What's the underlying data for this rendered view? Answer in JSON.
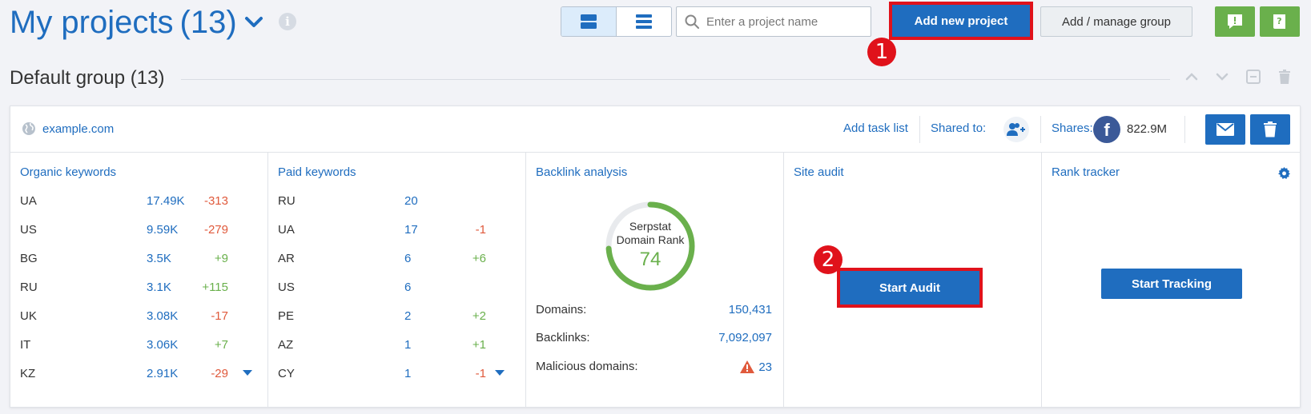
{
  "header": {
    "title": "My projects",
    "count": "(13)",
    "search_placeholder": "Enter a project name",
    "add_new_label": "Add new project",
    "manage_label": "Add / manage group",
    "markers": [
      "1",
      "2"
    ]
  },
  "group": {
    "title": "Default group (13)"
  },
  "project": {
    "domain": "example.com",
    "add_task_list": "Add task list",
    "shared_to": "Shared to:",
    "shares_label": "Shares:",
    "fb_letter": "f",
    "shares_value": "822.9M"
  },
  "organic": {
    "title": "Organic keywords",
    "rows": [
      {
        "cc": "UA",
        "v": "17.49K",
        "d": "-313"
      },
      {
        "cc": "US",
        "v": "9.59K",
        "d": "-279"
      },
      {
        "cc": "BG",
        "v": "3.5K",
        "d": "+9"
      },
      {
        "cc": "RU",
        "v": "3.1K",
        "d": "+115"
      },
      {
        "cc": "UK",
        "v": "3.08K",
        "d": "-17"
      },
      {
        "cc": "IT",
        "v": "3.06K",
        "d": "+7"
      },
      {
        "cc": "KZ",
        "v": "2.91K",
        "d": "-29"
      }
    ]
  },
  "paid": {
    "title": "Paid keywords",
    "rows": [
      {
        "cc": "RU",
        "v": "20",
        "d": ""
      },
      {
        "cc": "UA",
        "v": "17",
        "d": "-1"
      },
      {
        "cc": "AR",
        "v": "6",
        "d": "+6"
      },
      {
        "cc": "US",
        "v": "6",
        "d": ""
      },
      {
        "cc": "PE",
        "v": "2",
        "d": "+2"
      },
      {
        "cc": "AZ",
        "v": "1",
        "d": "+1"
      },
      {
        "cc": "CY",
        "v": "1",
        "d": "-1"
      }
    ]
  },
  "backlinks": {
    "title": "Backlink analysis",
    "rank_label_1": "Serpstat",
    "rank_label_2": "Domain Rank",
    "rank_value": "74",
    "rank_fraction": 0.74,
    "domains_label": "Domains:",
    "domains_value": "150,431",
    "backlinks_label": "Backlinks:",
    "backlinks_value": "7,092,097",
    "malicious_label": "Malicious domains:",
    "malicious_value": "23"
  },
  "audit": {
    "title": "Site audit",
    "start_label": "Start Audit"
  },
  "tracker": {
    "title": "Rank tracker",
    "start_label": "Start Tracking"
  },
  "colors": {
    "brand_blue": "#1f6dbf",
    "green": "#6ab04c",
    "red_highlight": "#e0121b",
    "negative": "#e05a3c"
  }
}
